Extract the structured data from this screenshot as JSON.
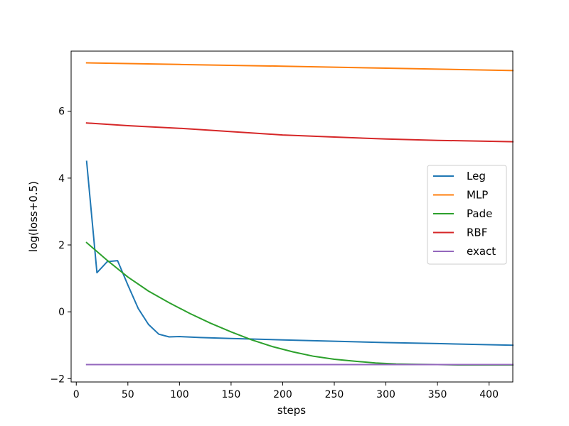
{
  "chart_data": {
    "type": "line",
    "title": "",
    "xlabel": "steps",
    "ylabel": "log(loss+0.5)",
    "xlim": [
      -5,
      423
    ],
    "ylim": [
      -2.1,
      7.8
    ],
    "xticks": [
      0,
      50,
      100,
      150,
      200,
      250,
      300,
      350,
      400
    ],
    "yticks": [
      -2,
      0,
      2,
      4,
      6
    ],
    "xtick_labels": [
      "0",
      "50",
      "100",
      "150",
      "200",
      "250",
      "300",
      "350",
      "400"
    ],
    "ytick_labels": [
      "−2",
      "0",
      "2",
      "4",
      "6"
    ],
    "grid": false,
    "legend_position": "center-right",
    "series": [
      {
        "name": "Leg",
        "color": "#1f77b4",
        "x": [
          10,
          20,
          30,
          40,
          50,
          60,
          70,
          80,
          90,
          100,
          120,
          150,
          200,
          250,
          300,
          350,
          423
        ],
        "y": [
          4.5,
          1.17,
          1.5,
          1.53,
          0.8,
          0.1,
          -0.38,
          -0.67,
          -0.75,
          -0.74,
          -0.77,
          -0.8,
          -0.84,
          -0.88,
          -0.92,
          -0.95,
          -1.0
        ]
      },
      {
        "name": "MLP",
        "color": "#ff7f0e",
        "x": [
          10,
          100,
          200,
          300,
          423
        ],
        "y": [
          7.45,
          7.4,
          7.35,
          7.29,
          7.22
        ]
      },
      {
        "name": "Pade",
        "color": "#2ca02c",
        "x": [
          10,
          30,
          50,
          70,
          90,
          110,
          130,
          150,
          170,
          190,
          210,
          230,
          250,
          270,
          290,
          310,
          330,
          350,
          370,
          390,
          423
        ],
        "y": [
          2.07,
          1.54,
          1.04,
          0.62,
          0.27,
          -0.05,
          -0.34,
          -0.6,
          -0.84,
          -1.04,
          -1.2,
          -1.33,
          -1.42,
          -1.48,
          -1.53,
          -1.56,
          -1.57,
          -1.58,
          -1.59,
          -1.59,
          -1.59
        ]
      },
      {
        "name": "RBF",
        "color": "#d62728",
        "x": [
          10,
          50,
          100,
          150,
          200,
          250,
          300,
          350,
          423
        ],
        "y": [
          5.65,
          5.57,
          5.49,
          5.39,
          5.29,
          5.23,
          5.17,
          5.13,
          5.09
        ]
      },
      {
        "name": "exact",
        "color": "#9467bd",
        "x": [
          10,
          423
        ],
        "y": [
          -1.58,
          -1.58
        ]
      }
    ]
  }
}
